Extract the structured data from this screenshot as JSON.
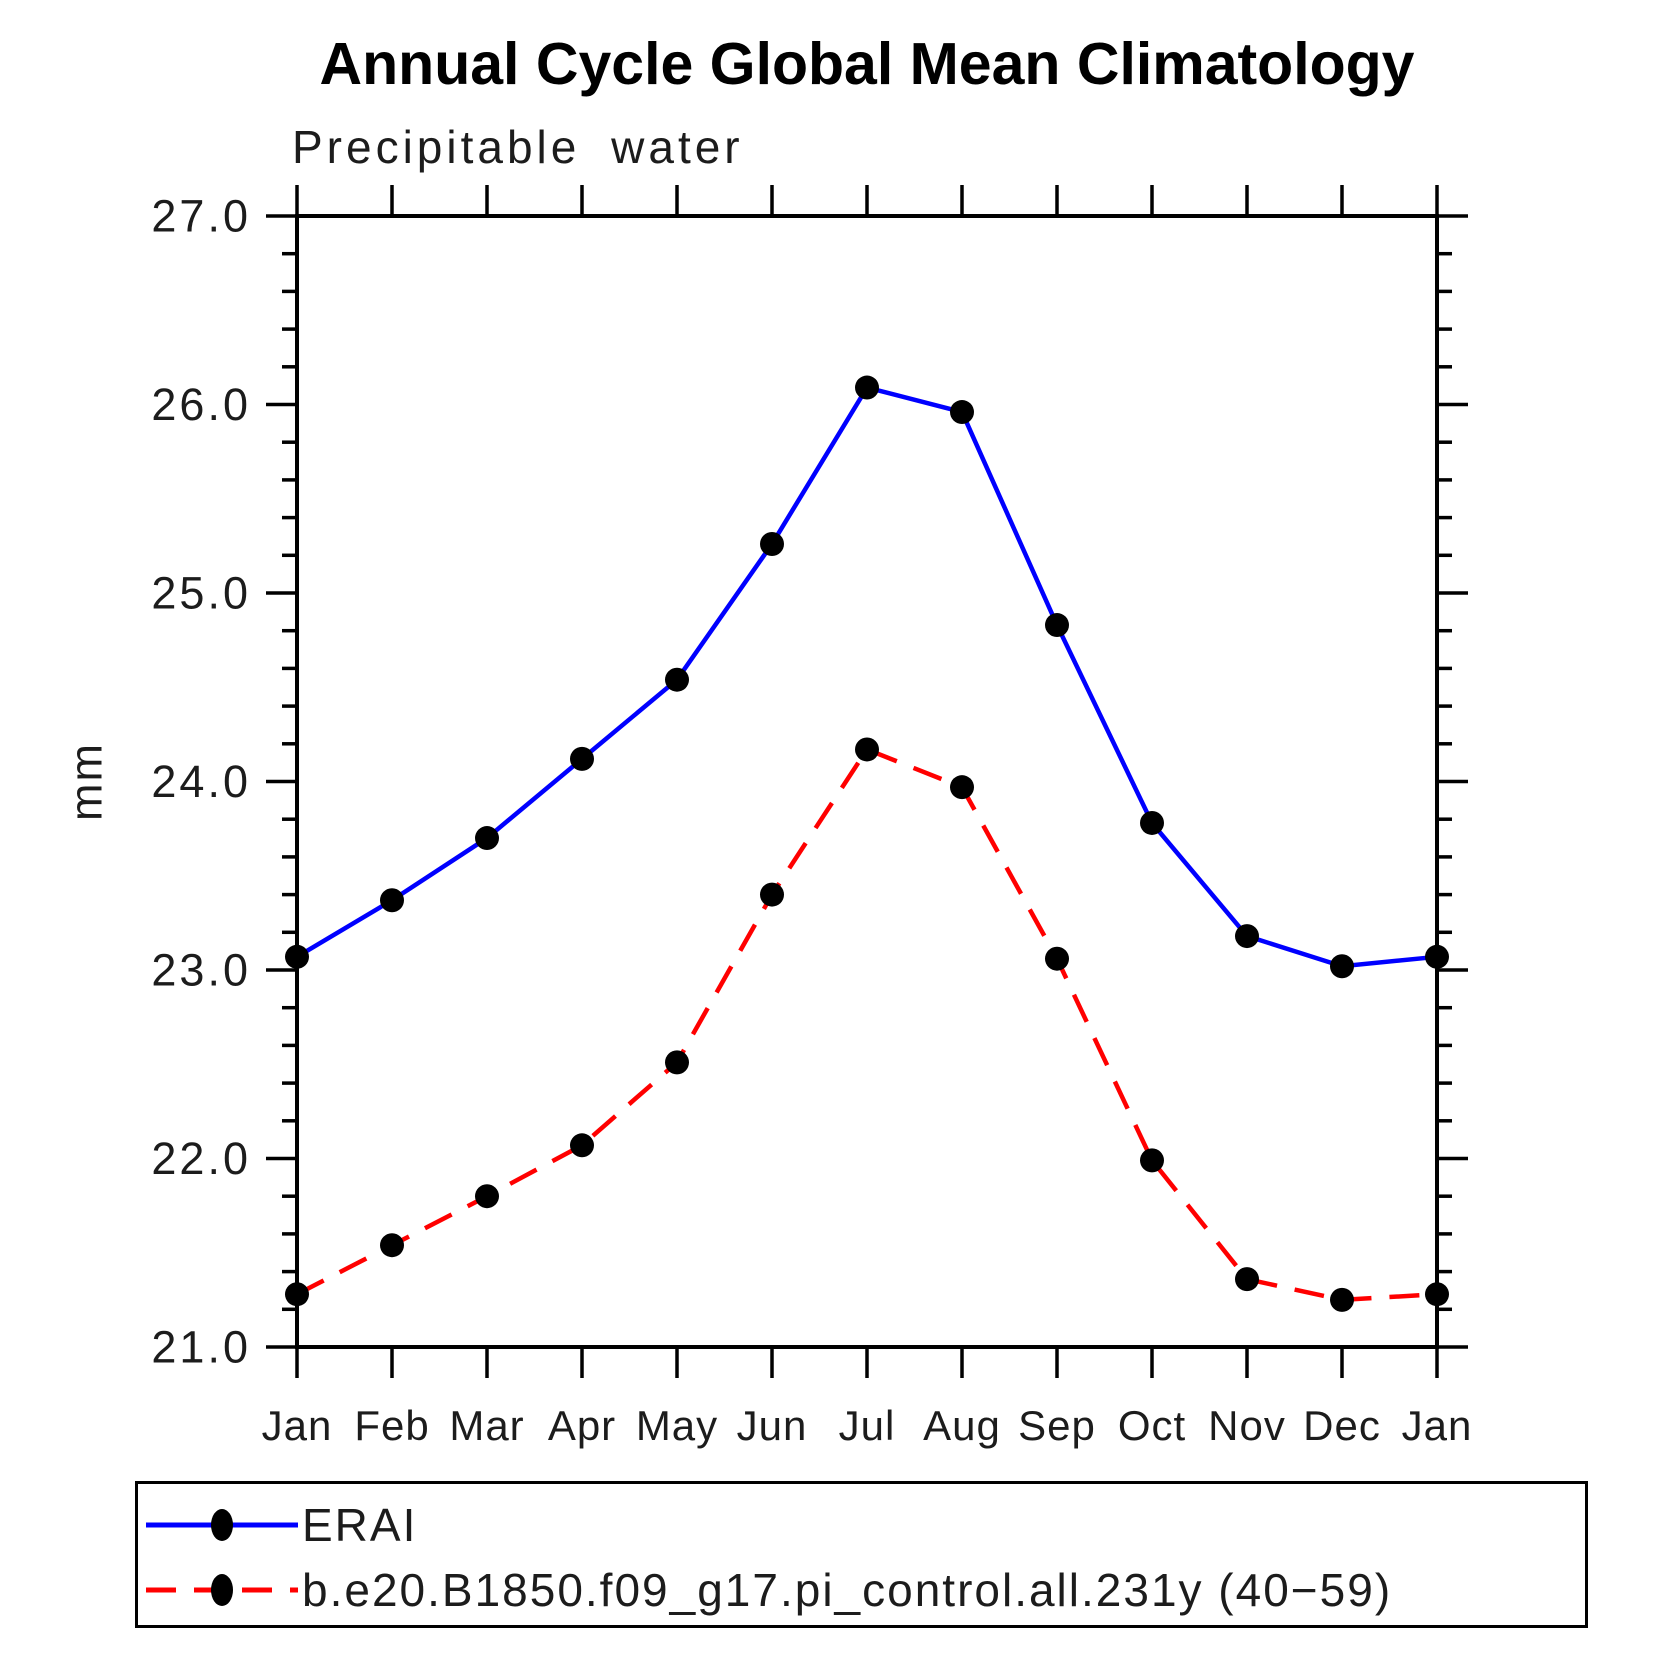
{
  "figure": {
    "title": "Annual Cycle Global Mean Climatology",
    "background_color": "#ffffff",
    "text_color": "#1c1c1c",
    "axis_color": "#000000"
  },
  "chart_data": {
    "type": "line",
    "title": "Annual Cycle Global Mean Climatology",
    "subtitle": "Precipitable water",
    "xlabel": "",
    "ylabel": "mm",
    "ylim": [
      21.0,
      27.0
    ],
    "y_major_step": 1.0,
    "y_minor_step": 0.2,
    "y_tick_decimals": 1,
    "grid": false,
    "legend_position": "bottom",
    "categories": [
      "Jan",
      "Feb",
      "Mar",
      "Apr",
      "May",
      "Jun",
      "Jul",
      "Aug",
      "Sep",
      "Oct",
      "Nov",
      "Dec",
      "Jan"
    ],
    "series": [
      {
        "name": "ERAI",
        "color": "#0000ff",
        "line_style": "solid",
        "marker": "circle",
        "marker_color": "#000000",
        "values": [
          23.07,
          23.37,
          23.7,
          24.12,
          24.54,
          25.26,
          26.09,
          25.96,
          24.83,
          23.78,
          23.18,
          23.02,
          23.07
        ]
      },
      {
        "name": "b.e20.B1850.f09_g17.pi_control.all.231y (40−59)",
        "color": "#ff0000",
        "line_style": "dashed",
        "marker": "circle",
        "marker_color": "#000000",
        "values": [
          21.28,
          21.54,
          21.8,
          22.07,
          22.51,
          23.4,
          24.17,
          23.97,
          23.06,
          21.99,
          21.36,
          21.25,
          21.28
        ]
      }
    ]
  }
}
